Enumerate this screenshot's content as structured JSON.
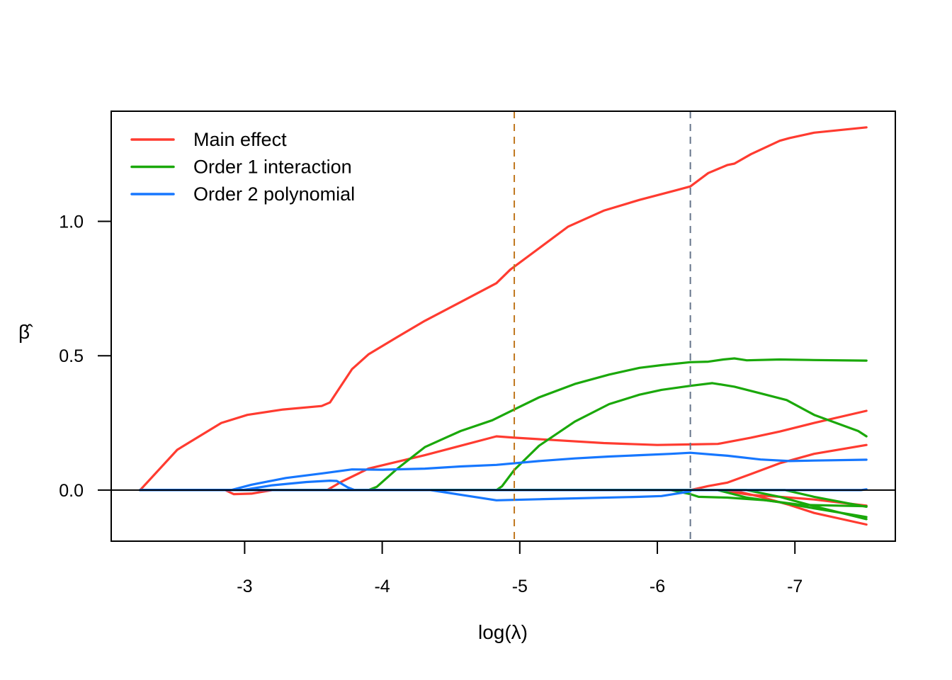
{
  "chart_data": {
    "type": "line",
    "title": "",
    "xlabel": "log(λ)",
    "ylabel": "β̂",
    "xlim": [
      -2.03,
      -7.73
    ],
    "ylim": [
      -0.19,
      1.41
    ],
    "x_reversed": true,
    "x_ticks": [
      -3,
      -4,
      -5,
      -6,
      -7
    ],
    "x_tick_labels": [
      "-3",
      "-4",
      "-5",
      "-6",
      "-7"
    ],
    "y_ticks": [
      0.0,
      0.5,
      1.0
    ],
    "y_tick_labels": [
      "0.0",
      "0.5",
      "1.0"
    ],
    "grid": false,
    "legend": {
      "position": "top-left",
      "entries": [
        {
          "label": "Main effect",
          "color": "#FF3B30"
        },
        {
          "label": "Order 1 interaction",
          "color": "#1AA80A"
        },
        {
          "label": "Order 2 polynomial",
          "color": "#1677FF"
        }
      ]
    },
    "reference_lines": {
      "horizontal": {
        "y": 0.0,
        "color": "#000000"
      },
      "vertical": [
        {
          "x": -4.96,
          "color": "#C0771E",
          "style": "dashed"
        },
        {
          "x": -6.24,
          "color": "#66758A",
          "style": "dashed"
        }
      ]
    },
    "series": [
      {
        "name": "Main effect",
        "group": "main",
        "color": "#FF3B30",
        "x": [
          -2.24,
          -2.51,
          -2.83,
          -3.02,
          -3.28,
          -3.56,
          -3.62,
          -3.78,
          -3.9,
          -4.11,
          -4.31,
          -4.57,
          -4.83,
          -4.93,
          -5.14,
          -5.35,
          -5.61,
          -5.87,
          -6.13,
          -6.24,
          -6.37,
          -6.51,
          -6.56,
          -6.68,
          -6.89,
          -6.96,
          -7.14,
          -7.52
        ],
        "y": [
          0.0,
          0.15,
          0.25,
          0.28,
          0.3,
          0.313,
          0.326,
          0.45,
          0.505,
          0.57,
          0.63,
          0.7,
          0.77,
          0.82,
          0.9,
          0.98,
          1.04,
          1.08,
          1.115,
          1.13,
          1.18,
          1.21,
          1.215,
          1.25,
          1.3,
          1.31,
          1.33,
          1.35
        ]
      },
      {
        "name": "Main effect",
        "group": "main",
        "color": "#FF3B30",
        "x": [
          -2.24,
          -3.6,
          -3.7,
          -3.9,
          -4.31,
          -4.83,
          -4.96,
          -5.61,
          -6.0,
          -6.24,
          -6.44,
          -6.68,
          -6.89,
          -7.14,
          -7.52
        ],
        "y": [
          0.0,
          0.0,
          0.03,
          0.08,
          0.13,
          0.2,
          0.195,
          0.175,
          0.168,
          0.17,
          0.172,
          0.195,
          0.218,
          0.25,
          0.295
        ]
      },
      {
        "name": "Main effect",
        "group": "main",
        "color": "#FF3B30",
        "x": [
          -2.24,
          -6.24,
          -6.37,
          -6.51,
          -6.68,
          -6.89,
          -7.14,
          -7.52
        ],
        "y": [
          0.0,
          0.0,
          0.015,
          0.028,
          0.06,
          0.1,
          0.135,
          0.168
        ]
      },
      {
        "name": "Main effect",
        "group": "main",
        "color": "#FF3B30",
        "x": [
          -2.24,
          -2.86,
          -2.92,
          -3.05,
          -3.2,
          -3.4
        ],
        "y": [
          0.0,
          0.0,
          -0.015,
          -0.013,
          0.0,
          0.0
        ]
      },
      {
        "name": "Main effect",
        "group": "main",
        "color": "#FF3B30",
        "x": [
          -2.24,
          -6.44,
          -6.68,
          -6.89,
          -7.14,
          -7.52
        ],
        "y": [
          0.0,
          0.0,
          -0.018,
          -0.025,
          -0.035,
          -0.058
        ]
      },
      {
        "name": "Main effect",
        "group": "main",
        "color": "#FF3B30",
        "x": [
          -2.24,
          -6.54,
          -6.75,
          -6.96,
          -7.14,
          -7.52
        ],
        "y": [
          0.0,
          0.0,
          -0.025,
          -0.055,
          -0.085,
          -0.128
        ]
      },
      {
        "name": "Order 1 interaction",
        "group": "order1",
        "color": "#1AA80A",
        "x": [
          -2.24,
          -3.9,
          -3.96,
          -4.11,
          -4.31,
          -4.57,
          -4.8,
          -4.96,
          -5.14,
          -5.4,
          -5.65,
          -5.87,
          -6.03,
          -6.24,
          -6.37,
          -6.48,
          -6.56,
          -6.65,
          -6.89,
          -7.14,
          -7.52
        ],
        "y": [
          0.0,
          0.0,
          0.012,
          0.08,
          0.16,
          0.22,
          0.26,
          0.3,
          0.345,
          0.395,
          0.43,
          0.455,
          0.465,
          0.476,
          0.478,
          0.486,
          0.49,
          0.483,
          0.486,
          0.484,
          0.482
        ]
      },
      {
        "name": "Order 1 interaction",
        "group": "order1",
        "color": "#1AA80A",
        "x": [
          -2.24,
          -4.83,
          -4.87,
          -4.96,
          -5.14,
          -5.4,
          -5.65,
          -5.87,
          -6.03,
          -6.24,
          -6.4,
          -6.56,
          -6.75,
          -6.94,
          -7.14,
          -7.46,
          -7.52
        ],
        "y": [
          0.0,
          0.0,
          0.014,
          0.075,
          0.165,
          0.255,
          0.32,
          0.355,
          0.373,
          0.388,
          0.398,
          0.385,
          0.36,
          0.335,
          0.28,
          0.22,
          0.2
        ]
      },
      {
        "name": "Order 1 interaction",
        "group": "order1",
        "color": "#1AA80A",
        "x": [
          -2.24,
          -6.1,
          -6.24,
          -6.3,
          -6.51,
          -6.79,
          -7.05,
          -7.52
        ],
        "y": [
          0.0,
          0.0,
          -0.015,
          -0.025,
          -0.028,
          -0.038,
          -0.055,
          -0.06
        ]
      },
      {
        "name": "Order 1 interaction",
        "group": "order1",
        "color": "#1AA80A",
        "x": [
          -2.24,
          -6.44,
          -6.65,
          -6.89,
          -7.14,
          -7.52
        ],
        "y": [
          0.0,
          0.0,
          -0.028,
          -0.045,
          -0.068,
          -0.1
        ]
      },
      {
        "name": "Order 1 interaction",
        "group": "order1",
        "color": "#1AA80A",
        "x": [
          -2.24,
          -6.65,
          -6.89,
          -7.14,
          -7.52
        ],
        "y": [
          0.0,
          0.0,
          -0.025,
          -0.06,
          -0.108
        ]
      },
      {
        "name": "Order 1 interaction",
        "group": "order1",
        "color": "#1AA80A",
        "x": [
          -2.24,
          -6.93,
          -7.14,
          -7.52
        ],
        "y": [
          0.0,
          0.0,
          -0.025,
          -0.062
        ]
      },
      {
        "name": "Order 2 polynomial",
        "group": "order2",
        "color": "#1677FF",
        "x": [
          -2.24,
          -2.9,
          -3.05,
          -3.3,
          -3.56,
          -3.78,
          -4.0,
          -4.31,
          -4.57,
          -4.83,
          -5.14,
          -5.4,
          -5.65,
          -5.87,
          -6.1,
          -6.24,
          -6.51,
          -6.75,
          -6.96,
          -7.14,
          -7.52
        ],
        "y": [
          0.0,
          0.0,
          0.02,
          0.045,
          0.062,
          0.077,
          0.076,
          0.08,
          0.088,
          0.094,
          0.108,
          0.118,
          0.125,
          0.13,
          0.135,
          0.139,
          0.128,
          0.114,
          0.108,
          0.11,
          0.113
        ]
      },
      {
        "name": "Order 2 polynomial",
        "group": "order2",
        "color": "#1677FF",
        "x": [
          -2.24,
          -2.98,
          -3.2,
          -3.45,
          -3.62,
          -3.67,
          -3.75,
          -3.8
        ],
        "y": [
          0.0,
          0.0,
          0.018,
          0.03,
          0.035,
          0.034,
          0.01,
          0.0
        ]
      },
      {
        "name": "Order 2 polynomial",
        "group": "order2",
        "color": "#1677FF",
        "x": [
          -2.24,
          -4.35,
          -4.83,
          -5.14,
          -5.87,
          -6.03,
          -6.24
        ],
        "y": [
          0.0,
          0.0,
          -0.038,
          -0.034,
          -0.025,
          -0.022,
          -0.005
        ]
      },
      {
        "name": "Order 2 polynomial",
        "group": "order2",
        "color": "#1677FF",
        "x": [
          -2.24,
          -7.48,
          -7.52
        ],
        "y": [
          0.0,
          0.0,
          0.003
        ]
      }
    ]
  }
}
